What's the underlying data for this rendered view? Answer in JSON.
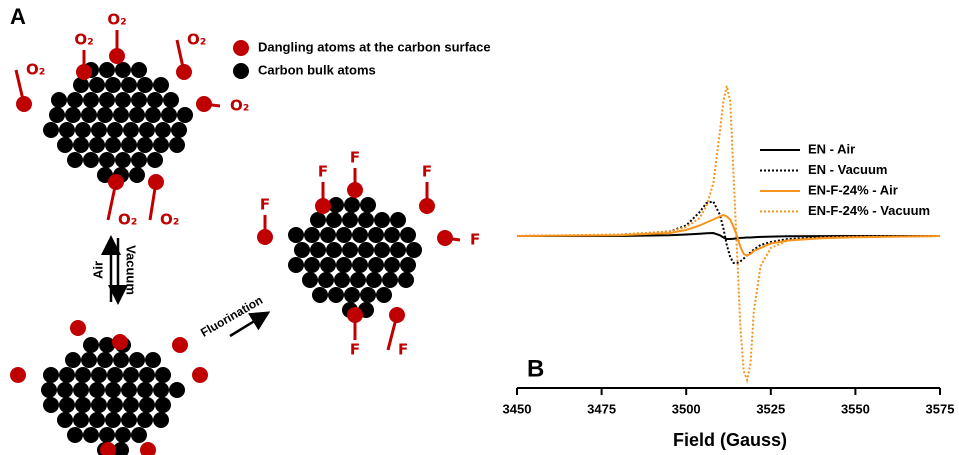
{
  "diagram": {
    "panel_label": "A",
    "legend": [
      "Dangling atoms at the carbon surface",
      "Carbon bulk atoms"
    ],
    "o2_labels": [
      "O₂",
      "O₂",
      "O₂",
      "O₂",
      "O₂",
      "O₂",
      "O₂"
    ],
    "f_labels": [
      "F",
      "F",
      "F",
      "F",
      "F",
      "F",
      "F"
    ],
    "vacuum": "Vacuum",
    "air": "Air",
    "fluorination": "Fluorination"
  },
  "chart_data": {
    "type": "line",
    "panel_label": "B",
    "xlabel": "Field (Gauss)",
    "x": [
      3450,
      3480,
      3495,
      3500,
      3504,
      3506,
      3508,
      3510,
      3511,
      3512,
      3513,
      3514,
      3515,
      3516,
      3517,
      3518,
      3519,
      3520,
      3522,
      3525,
      3530,
      3540,
      3550,
      3575
    ],
    "series": [
      {
        "name": "EN - Air",
        "color": "#000000",
        "linestyle": "solid",
        "values": [
          0,
          0,
          0.5,
          1,
          1.5,
          1.8,
          2,
          0.5,
          -1,
          -2,
          -2,
          -1.8,
          -1.5,
          -1.3,
          -1.2,
          -1,
          -1,
          -0.8,
          -0.6,
          -0.4,
          -0.2,
          -0.1,
          0,
          0
        ]
      },
      {
        "name": "EN - Vacuum",
        "color": "#000000",
        "linestyle": "dotted",
        "values": [
          0,
          0.5,
          3,
          7,
          16,
          22,
          23,
          14,
          5,
          -6,
          -14,
          -18,
          -18,
          -17,
          -15,
          -13,
          -11,
          -9,
          -6,
          -4,
          -2,
          -1,
          -0.5,
          0
        ]
      },
      {
        "name": "EN-F-24% - Air",
        "color": "#f7941d",
        "linestyle": "solid",
        "values": [
          0,
          0.5,
          2,
          4,
          7,
          9,
          11,
          13,
          14,
          13,
          11,
          6,
          0,
          -7,
          -12,
          -13,
          -12,
          -10,
          -8,
          -5,
          -3,
          -1.5,
          -0.8,
          0
        ]
      },
      {
        "name": "EN-F-24% - Vacuum",
        "color": "#f7941d",
        "linestyle": "dotted",
        "values": [
          0,
          1,
          3,
          6,
          12,
          20,
          35,
          70,
          90,
          100,
          90,
          40,
          -10,
          -60,
          -90,
          -96,
          -85,
          -50,
          -20,
          -8,
          -3,
          -1,
          -0.5,
          0
        ]
      }
    ],
    "xlim": [
      3450,
      3575
    ],
    "xticks": [
      3450,
      3475,
      3500,
      3525,
      3550,
      3575
    ],
    "ylim": [
      -100,
      100
    ],
    "legend": "upper right"
  }
}
